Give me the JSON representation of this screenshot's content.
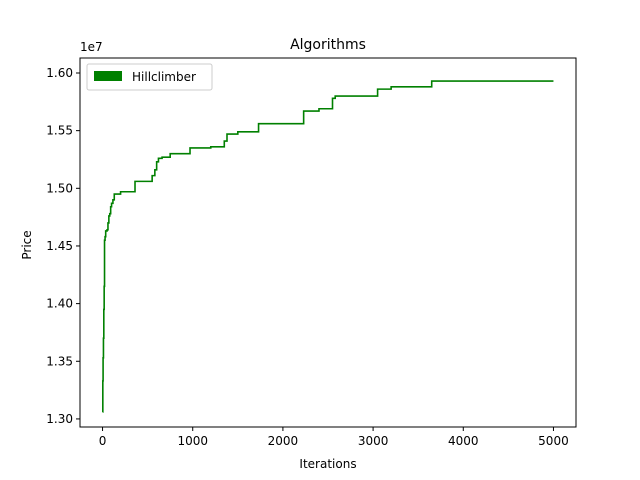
{
  "chart_data": {
    "type": "line",
    "title": "Algorithms",
    "xlabel": "Iterations",
    "ylabel": "Price",
    "y_multiplier_label": "1e7",
    "y_scale": 10000000,
    "xlim": [
      -250,
      5250
    ],
    "ylim": [
      12930000,
      16130000
    ],
    "xticks": [
      0,
      1000,
      2000,
      3000,
      4000,
      5000
    ],
    "xtick_labels": [
      "0",
      "1000",
      "2000",
      "3000",
      "4000",
      "5000"
    ],
    "yticks": [
      13000000,
      13500000,
      14000000,
      14500000,
      15000000,
      15500000,
      16000000
    ],
    "ytick_labels": [
      "1.30",
      "1.35",
      "1.40",
      "1.45",
      "1.50",
      "1.55",
      "1.60"
    ],
    "grid": false,
    "legend_position": "top-left",
    "series": [
      {
        "name": "Hillclimber",
        "color": "#008000",
        "step": true,
        "points": [
          [
            0,
            13060000
          ],
          [
            3,
            13330000
          ],
          [
            6,
            13530000
          ],
          [
            10,
            13700000
          ],
          [
            14,
            13950000
          ],
          [
            18,
            14150000
          ],
          [
            22,
            14550000
          ],
          [
            28,
            14580000
          ],
          [
            35,
            14630000
          ],
          [
            50,
            14640000
          ],
          [
            60,
            14700000
          ],
          [
            70,
            14760000
          ],
          [
            80,
            14780000
          ],
          [
            90,
            14840000
          ],
          [
            100,
            14870000
          ],
          [
            115,
            14900000
          ],
          [
            130,
            14950000
          ],
          [
            200,
            14970000
          ],
          [
            360,
            15060000
          ],
          [
            550,
            15110000
          ],
          [
            580,
            15160000
          ],
          [
            600,
            15230000
          ],
          [
            620,
            15260000
          ],
          [
            660,
            15270000
          ],
          [
            750,
            15300000
          ],
          [
            970,
            15350000
          ],
          [
            1200,
            15360000
          ],
          [
            1350,
            15410000
          ],
          [
            1380,
            15470000
          ],
          [
            1500,
            15490000
          ],
          [
            1730,
            15560000
          ],
          [
            2230,
            15670000
          ],
          [
            2400,
            15690000
          ],
          [
            2550,
            15780000
          ],
          [
            2580,
            15800000
          ],
          [
            3050,
            15860000
          ],
          [
            3200,
            15880000
          ],
          [
            3650,
            15930000
          ],
          [
            5000,
            15930000
          ]
        ]
      }
    ]
  }
}
